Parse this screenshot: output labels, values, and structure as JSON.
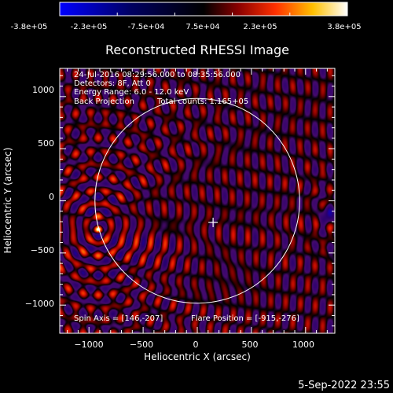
{
  "colorbar": {
    "ticks": [
      "-3.8e+05",
      "-2.3e+05",
      "-7.5e+04",
      "7.5e+04",
      "2.3e+05",
      "3.8e+05"
    ]
  },
  "chart_data": {
    "type": "heatmap",
    "title": "Reconstructed RHESSI Image",
    "xlabel": "Heliocentric X (arcsec)",
    "ylabel": "Heliocentric Y (arcsec)",
    "xlim": [
      -1270,
      1270
    ],
    "ylim": [
      -1270,
      1270
    ],
    "xticks": [
      -1000,
      -500,
      0,
      500,
      1000
    ],
    "yticks": [
      -1000,
      -500,
      0,
      500,
      1000
    ],
    "xtick_labels": [
      "−1000",
      "−500",
      "0",
      "500",
      "1000"
    ],
    "ytick_labels": [
      "−1000",
      "−500",
      "0",
      "500",
      "1000"
    ],
    "colorscale_range": [
      -380000,
      380000
    ],
    "solar_limb_radius": 945,
    "disk_center_marker": [
      146,
      -207
    ],
    "bright_source": [
      -915,
      -276
    ],
    "dark_source": [
      1205,
      -136
    ],
    "annotations": {
      "time_range": "24-Jul-2016 08:29:56.000 to 08:35:56.000",
      "detectors": "Detectors: 8F, Att 0",
      "energy": "Energy Range: 6.0 - 12.0 keV",
      "method": "Back Projection",
      "counts": "Total counts: 1.165+05",
      "spin_axis": "Spin Axis = [146,-207]",
      "flare_position": "Flare Position = [-915,-276]"
    }
  },
  "footer": {
    "date": "5-Sep-2022 23:55"
  }
}
